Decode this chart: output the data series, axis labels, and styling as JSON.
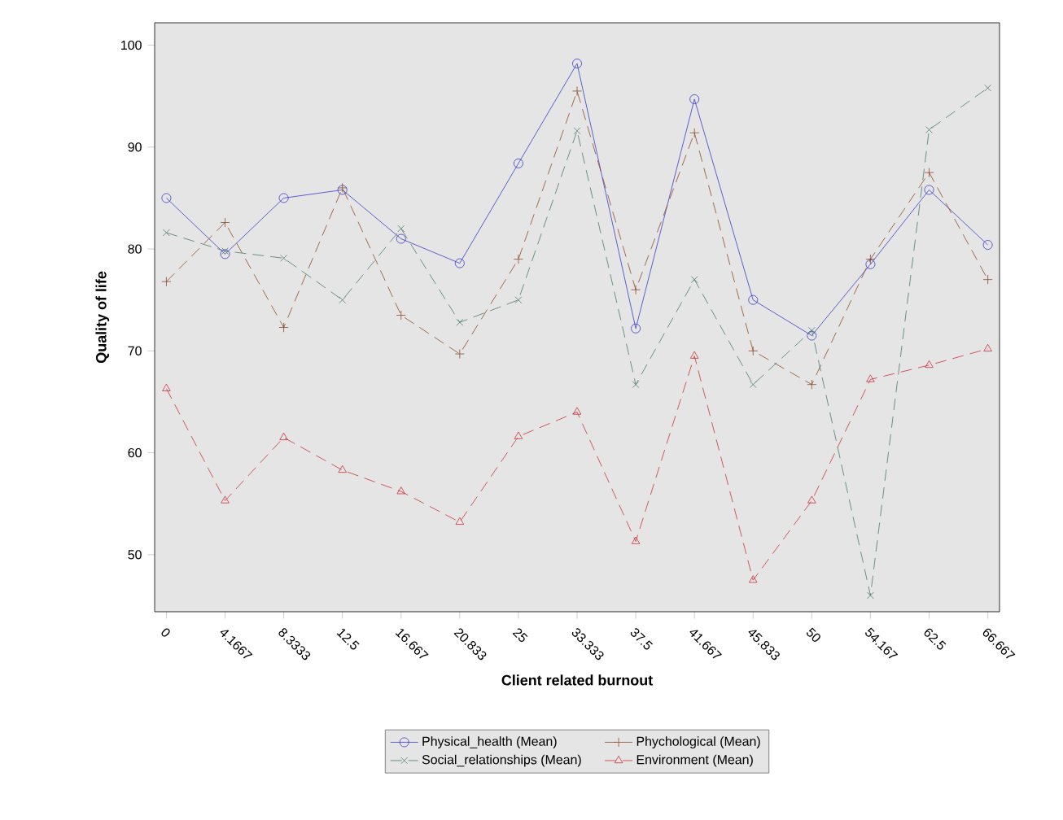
{
  "chart_data": {
    "type": "line",
    "xlabel": "Client related burnout",
    "ylabel": "Quality of life",
    "categories": [
      "0",
      "4.1667",
      "8.3333",
      "12.5",
      "16.667",
      "20.833",
      "25",
      "33.333",
      "37.5",
      "41.667",
      "45.833",
      "50",
      "54.167",
      "62.5",
      "66.667"
    ],
    "series": [
      {
        "name": "Physical_health (Mean)",
        "color": "#3b3bc8",
        "marker": "circle",
        "line_style": "solid",
        "values": [
          85,
          79.5,
          85,
          85.8,
          81,
          78.6,
          88.4,
          98.2,
          72.2,
          94.7,
          75,
          71.5,
          78.5,
          85.8,
          80.4
        ]
      },
      {
        "name": "Phychological (Mean)",
        "color": "#8b4a2a",
        "marker": "plus",
        "line_style": "dashed",
        "values": [
          76.8,
          82.6,
          72.3,
          86,
          73.5,
          69.7,
          79,
          95.5,
          76,
          91.4,
          70,
          66.7,
          79,
          87.5,
          77
        ]
      },
      {
        "name": "Social_relationships (Mean)",
        "color": "#4a7a6a",
        "marker": "cross",
        "line_style": "dashed",
        "values": [
          81.6,
          79.8,
          79.1,
          75,
          82,
          72.8,
          75,
          91.6,
          66.7,
          77,
          66.7,
          72,
          46,
          91.7,
          95.8
        ]
      },
      {
        "name": "Environment (Mean)",
        "color": "#c8323c",
        "marker": "triangle",
        "line_style": "dashed",
        "values": [
          66.3,
          55.3,
          61.5,
          58.3,
          56.2,
          53.2,
          61.6,
          64,
          51.3,
          69.5,
          47.5,
          55.3,
          67.2,
          68.6,
          70.2
        ]
      }
    ],
    "ylim": [
      44.4,
      102.2
    ],
    "yticks": [
      50,
      60,
      70,
      80,
      90,
      100
    ],
    "grid": false,
    "legend": "bottom"
  }
}
